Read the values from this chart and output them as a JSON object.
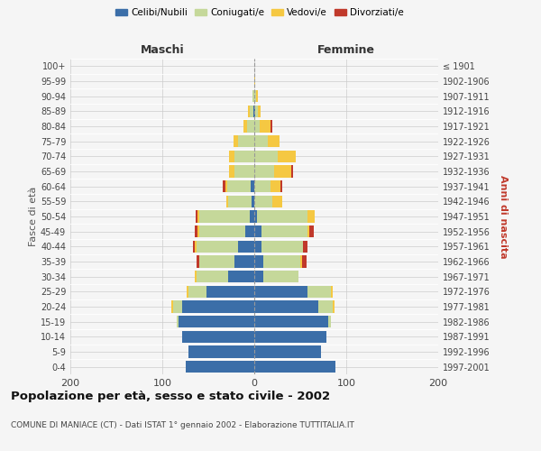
{
  "age_groups": [
    "0-4",
    "5-9",
    "10-14",
    "15-19",
    "20-24",
    "25-29",
    "30-34",
    "35-39",
    "40-44",
    "45-49",
    "50-54",
    "55-59",
    "60-64",
    "65-69",
    "70-74",
    "75-79",
    "80-84",
    "85-89",
    "90-94",
    "95-99",
    "100+"
  ],
  "birth_years": [
    "1997-2001",
    "1992-1996",
    "1987-1991",
    "1982-1986",
    "1977-1981",
    "1972-1976",
    "1967-1971",
    "1962-1966",
    "1957-1961",
    "1952-1956",
    "1947-1951",
    "1942-1946",
    "1937-1941",
    "1932-1936",
    "1927-1931",
    "1922-1926",
    "1917-1921",
    "1912-1916",
    "1907-1911",
    "1902-1906",
    "≤ 1901"
  ],
  "male": {
    "celibi": [
      75,
      72,
      78,
      82,
      78,
      52,
      28,
      22,
      18,
      10,
      5,
      3,
      4,
      0,
      0,
      0,
      0,
      1,
      0,
      0,
      0
    ],
    "coniugati": [
      0,
      0,
      0,
      2,
      10,
      20,
      35,
      38,
      45,
      50,
      55,
      25,
      25,
      22,
      22,
      18,
      8,
      4,
      2,
      0,
      0
    ],
    "vedovi": [
      0,
      0,
      0,
      0,
      2,
      2,
      2,
      0,
      2,
      2,
      2,
      2,
      2,
      5,
      5,
      5,
      4,
      2,
      0,
      0,
      0
    ],
    "divorziati": [
      0,
      0,
      0,
      0,
      0,
      0,
      0,
      3,
      2,
      3,
      2,
      0,
      3,
      0,
      0,
      0,
      0,
      0,
      0,
      0,
      0
    ]
  },
  "female": {
    "nubili": [
      88,
      73,
      78,
      80,
      70,
      58,
      10,
      10,
      8,
      8,
      3,
      0,
      0,
      0,
      0,
      0,
      0,
      1,
      0,
      0,
      0
    ],
    "coniugate": [
      0,
      0,
      0,
      3,
      15,
      25,
      38,
      40,
      45,
      50,
      55,
      20,
      18,
      22,
      25,
      15,
      6,
      3,
      2,
      0,
      0
    ],
    "vedove": [
      0,
      0,
      0,
      0,
      2,
      2,
      0,
      2,
      0,
      2,
      8,
      10,
      10,
      18,
      20,
      12,
      12,
      3,
      2,
      1,
      0
    ],
    "divorziate": [
      0,
      0,
      0,
      0,
      0,
      0,
      0,
      5,
      5,
      5,
      0,
      0,
      2,
      2,
      0,
      0,
      2,
      0,
      0,
      0,
      0
    ]
  },
  "colors": {
    "celibi": "#3b6ea8",
    "coniugati": "#c5d89a",
    "vedovi": "#f5c842",
    "divorziati": "#c0392b"
  },
  "title": "Popolazione per età, sesso e stato civile - 2002",
  "subtitle": "COMUNE DI MANIACE (CT) - Dati ISTAT 1° gennaio 2002 - Elaborazione TUTTITALIA.IT",
  "ylabel_left": "Fasce di età",
  "ylabel_right": "Anni di nascita",
  "xlabel_left": "Maschi",
  "xlabel_right": "Femmine",
  "xlim": 200,
  "bg_color": "#f5f5f5",
  "grid_color": "#cccccc"
}
